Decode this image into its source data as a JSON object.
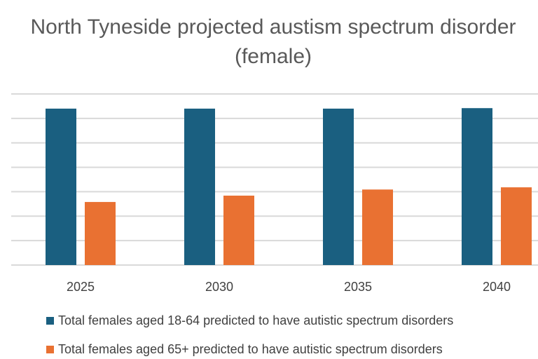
{
  "chart_data": {
    "type": "bar",
    "title": "North Tyneside projected austism spectrum disorder (female)",
    "categories": [
      "2025",
      "2030",
      "2035",
      "2040"
    ],
    "series": [
      {
        "name": "Total females aged 18-64 predicted to have autistic spectrum disorders",
        "color": "#1a5f80",
        "values": [
          6.4,
          6.4,
          6.4,
          6.42
        ]
      },
      {
        "name": "Total females aged 65+ predicted to have autistic spectrum disorders",
        "color": "#e97132",
        "values": [
          2.58,
          2.84,
          3.09,
          3.18
        ]
      }
    ],
    "xlabel": "",
    "ylabel": "",
    "ylim": [
      0,
      7
    ],
    "y_tick_labels_shown": false,
    "grid": true,
    "legend": "bottom"
  }
}
